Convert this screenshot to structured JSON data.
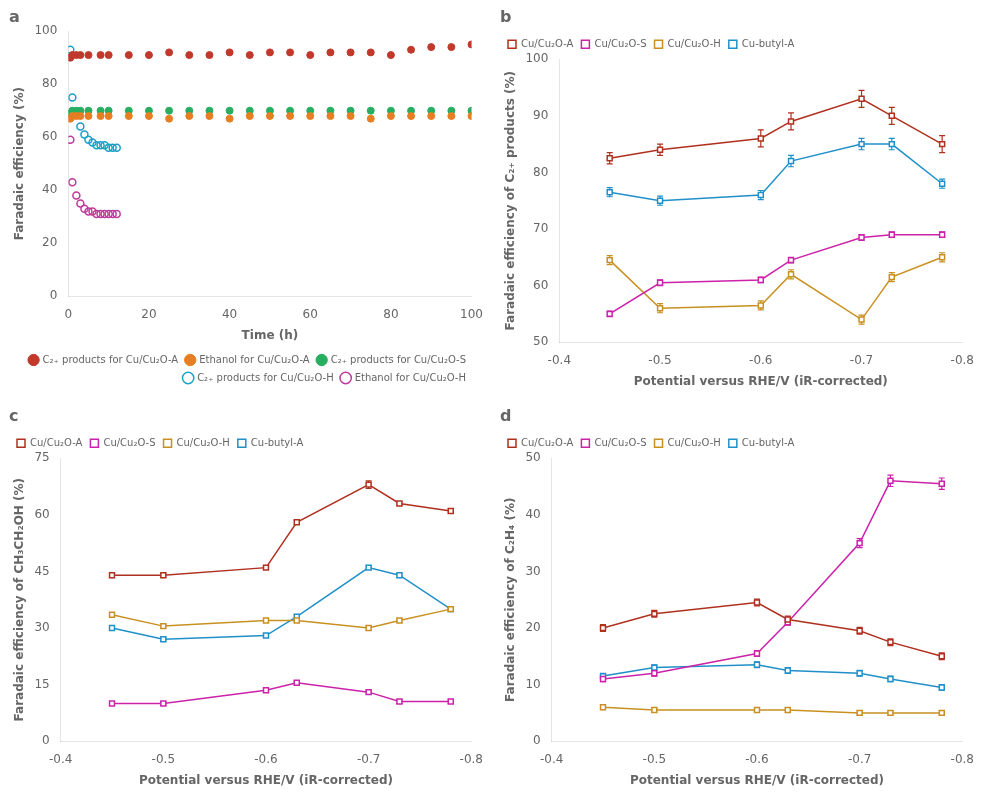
{
  "chart_data": [
    {
      "type": "scatter",
      "title": "a",
      "xlabel": "Time (h)",
      "ylabel": "Faradaic efficiency (%)",
      "xlim": [
        0,
        100
      ],
      "ylim": [
        0,
        100
      ],
      "xticks": [
        0,
        20,
        40,
        60,
        80,
        100
      ],
      "yticks": [
        0,
        20,
        40,
        60,
        80,
        100
      ],
      "grid": false,
      "legend": "lower right",
      "series": [
        {
          "name": "C₂₊ products for Cu/Cu₂O-A",
          "color": "#C0392B",
          "marker": "circle",
          "line_style": "none",
          "x": [
            0.5,
            1,
            2,
            3,
            5,
            8,
            10,
            15,
            20,
            25,
            30,
            35,
            40,
            45,
            50,
            55,
            60,
            65,
            70,
            75,
            80,
            85,
            90,
            95,
            100
          ],
          "values": [
            90,
            91,
            91,
            91,
            91,
            91,
            91,
            91,
            91,
            92,
            91,
            91,
            92,
            91,
            92,
            92,
            91,
            92,
            92,
            92,
            91,
            93,
            94,
            94,
            95
          ]
        },
        {
          "name": "Ethanol for Cu/Cu₂O-A",
          "color": "#E67E22",
          "marker": "circle",
          "line_style": "none",
          "x": [
            0.5,
            1,
            2,
            3,
            5,
            8,
            10,
            15,
            20,
            25,
            30,
            35,
            40,
            45,
            50,
            55,
            60,
            65,
            70,
            75,
            80,
            85,
            90,
            95,
            100
          ],
          "values": [
            67,
            68,
            68,
            68,
            68,
            68,
            68,
            68,
            68,
            67,
            68,
            68,
            67,
            68,
            68,
            68,
            68,
            68,
            68,
            67,
            68,
            68,
            68,
            68,
            68
          ]
        },
        {
          "name": "C₂₊ products for Cu/Cu₂O-S",
          "color": "#27AE60",
          "marker": "circle",
          "line_style": "none",
          "x": [
            0.5,
            1,
            2,
            3,
            5,
            8,
            10,
            15,
            20,
            25,
            30,
            35,
            40,
            45,
            50,
            55,
            60,
            65,
            70,
            75,
            80,
            85,
            90,
            95,
            100
          ],
          "values": [
            69,
            70,
            70,
            70,
            70,
            70,
            70,
            70,
            70,
            70,
            70,
            70,
            70,
            70,
            70,
            70,
            70,
            70,
            70,
            70,
            70,
            70,
            70,
            70,
            70
          ]
        },
        {
          "name": "C₂₊ products for Cu/Cu₂O-H",
          "color": "#17A1C7",
          "marker": "open_circle",
          "line_style": "none",
          "x": [
            0.5,
            1,
            2,
            3,
            4,
            5,
            6,
            7,
            8,
            9,
            10,
            11,
            12
          ],
          "values": [
            93,
            75,
            69,
            64,
            61,
            59,
            58,
            57,
            57,
            57,
            56,
            56,
            56
          ]
        },
        {
          "name": "Ethanol for Cu/Cu₂O-H",
          "color": "#C0399B",
          "marker": "open_circle",
          "line_style": "none",
          "x": [
            0.5,
            1,
            2,
            3,
            4,
            5,
            6,
            7,
            8,
            9,
            10,
            11,
            12
          ],
          "values": [
            59,
            43,
            38,
            35,
            33,
            32,
            32,
            31,
            31,
            31,
            31,
            31,
            31
          ]
        }
      ]
    },
    {
      "type": "line",
      "title": "b",
      "xlabel": "Potential versus RHE/V (iR-corrected)",
      "ylabel": "Faradaic efficiency of C₂₊ products (%)",
      "xlim": [
        -0.4,
        -0.8
      ],
      "ylim": [
        50,
        100
      ],
      "xticks": [
        -0.4,
        -0.5,
        -0.6,
        -0.7,
        -0.8
      ],
      "yticks": [
        50,
        60,
        70,
        80,
        90,
        100
      ],
      "grid": false,
      "legend": "upper left",
      "series": [
        {
          "name": "Cu/Cu₂O-A",
          "color": "#B03020",
          "marker": "open_square",
          "line_style": "solid",
          "x": [
            -0.45,
            -0.5,
            -0.6,
            -0.63,
            -0.7,
            -0.73,
            -0.78
          ],
          "values": [
            82.5,
            84,
            86,
            89,
            93,
            90,
            85
          ],
          "yerr": [
            1.0,
            1.0,
            1.5,
            1.5,
            1.5,
            1.5,
            1.5
          ]
        },
        {
          "name": "Cu/Cu₂O-S",
          "color": "#CC22AA",
          "marker": "open_square",
          "line_style": "solid",
          "x": [
            -0.45,
            -0.5,
            -0.6,
            -0.63,
            -0.7,
            -0.73,
            -0.78
          ],
          "values": [
            55,
            60.5,
            61,
            64.5,
            68.5,
            69,
            69
          ],
          "yerr": [
            0.5,
            0.5,
            0.5,
            0.5,
            0.5,
            0.5,
            0.5
          ]
        },
        {
          "name": "Cu/Cu₂O-H",
          "color": "#C89020",
          "marker": "open_square",
          "line_style": "solid",
          "x": [
            -0.45,
            -0.5,
            -0.6,
            -0.63,
            -0.7,
            -0.73,
            -0.78
          ],
          "values": [
            64.5,
            56,
            56.5,
            62,
            54,
            61.5,
            65
          ],
          "yerr": [
            0.8,
            0.8,
            0.8,
            0.8,
            0.8,
            0.8,
            0.8
          ]
        },
        {
          "name": "Cu-butyl-A",
          "color": "#2090C8",
          "marker": "open_square",
          "line_style": "solid",
          "x": [
            -0.45,
            -0.5,
            -0.6,
            -0.63,
            -0.7,
            -0.73,
            -0.78
          ],
          "values": [
            76.5,
            75,
            76,
            82,
            85,
            85,
            78
          ],
          "yerr": [
            0.8,
            0.8,
            0.8,
            1.0,
            1.0,
            1.0,
            0.8
          ]
        }
      ]
    },
    {
      "type": "line",
      "title": "c",
      "xlabel": "Potential versus RHE/V (iR-corrected)",
      "ylabel": "Faradaic efficiency of CH₃CH₂OH (%)",
      "xlim": [
        -0.4,
        -0.8
      ],
      "ylim": [
        0,
        75
      ],
      "xticks": [
        -0.4,
        -0.5,
        -0.6,
        -0.7,
        -0.8
      ],
      "yticks": [
        0,
        15,
        30,
        45,
        60,
        75
      ],
      "grid": false,
      "legend": "upper left",
      "series": [
        {
          "name": "Cu/Cu₂O-A",
          "color": "#B03020",
          "marker": "open_square",
          "line_style": "solid",
          "x": [
            -0.45,
            -0.5,
            -0.6,
            -0.63,
            -0.7,
            -0.73,
            -0.78
          ],
          "values": [
            44,
            44,
            46,
            58,
            68,
            63,
            61
          ],
          "yerr": [
            0.5,
            0.5,
            0.5,
            0.5,
            1.0,
            0.5,
            0.5
          ]
        },
        {
          "name": "Cu/Cu₂O-S",
          "color": "#CC22AA",
          "marker": "open_square",
          "line_style": "solid",
          "x": [
            -0.45,
            -0.5,
            -0.6,
            -0.63,
            -0.7,
            -0.73,
            -0.78
          ],
          "values": [
            10,
            10,
            13.5,
            15.5,
            13,
            10.5,
            10.5
          ],
          "yerr": [
            0.5,
            0.5,
            0.5,
            0.5,
            0.5,
            0.5,
            0.5
          ]
        },
        {
          "name": "Cu/Cu₂O-H",
          "color": "#C89020",
          "marker": "open_square",
          "line_style": "solid",
          "x": [
            -0.45,
            -0.5,
            -0.6,
            -0.63,
            -0.7,
            -0.73,
            -0.78
          ],
          "values": [
            33.5,
            30.5,
            32,
            32,
            30,
            32,
            35
          ],
          "yerr": [
            0.5,
            0.5,
            0.5,
            0.5,
            0.5,
            0.5,
            0.5
          ]
        },
        {
          "name": "Cu-butyl-A",
          "color": "#2090C8",
          "marker": "open_square",
          "line_style": "solid",
          "x": [
            -0.45,
            -0.5,
            -0.6,
            -0.63,
            -0.7,
            -0.73,
            -0.78
          ],
          "values": [
            30,
            27,
            28,
            33,
            46,
            44,
            35
          ],
          "yerr": [
            0.5,
            0.5,
            0.5,
            0.5,
            0.5,
            0.5,
            0.5
          ]
        }
      ]
    },
    {
      "type": "line",
      "title": "d",
      "xlabel": "Potential versus RHE/V (iR-corrected)",
      "ylabel": "Faradaic efficiency of C₂H₄ (%)",
      "xlim": [
        -0.4,
        -0.8
      ],
      "ylim": [
        0,
        50
      ],
      "xticks": [
        -0.4,
        -0.5,
        -0.6,
        -0.7,
        -0.8
      ],
      "yticks": [
        0,
        10,
        20,
        30,
        40,
        50
      ],
      "grid": false,
      "legend": "upper left",
      "series": [
        {
          "name": "Cu/Cu₂O-A",
          "color": "#B03020",
          "marker": "open_square",
          "line_style": "solid",
          "x": [
            -0.45,
            -0.5,
            -0.6,
            -0.63,
            -0.7,
            -0.73,
            -0.78
          ],
          "values": [
            20.0,
            22.5,
            24.5,
            21.5,
            19.5,
            17.5,
            15
          ],
          "yerr": [
            0.6,
            0.6,
            0.6,
            0.6,
            0.6,
            0.6,
            0.6
          ]
        },
        {
          "name": "Cu/Cu₂O-S",
          "color": "#CC22AA",
          "marker": "open_square",
          "line_style": "solid",
          "x": [
            -0.45,
            -0.5,
            -0.6,
            -0.63,
            -0.7,
            -0.73,
            -0.78
          ],
          "values": [
            11,
            12,
            15.5,
            21,
            35,
            46,
            45.5
          ],
          "yerr": [
            0.5,
            0.5,
            0.5,
            0.5,
            0.8,
            1.0,
            1.0
          ]
        },
        {
          "name": "Cu/Cu₂O-H",
          "color": "#C89020",
          "marker": "open_square",
          "line_style": "solid",
          "x": [
            -0.45,
            -0.5,
            -0.6,
            -0.63,
            -0.7,
            -0.73,
            -0.78
          ],
          "values": [
            6,
            5.5,
            5.5,
            5.5,
            5,
            5,
            5
          ],
          "yerr": [
            0.4,
            0.4,
            0.4,
            0.4,
            0.4,
            0.4,
            0.4
          ]
        },
        {
          "name": "Cu-butyl-A",
          "color": "#2090C8",
          "marker": "open_square",
          "line_style": "solid",
          "x": [
            -0.45,
            -0.5,
            -0.6,
            -0.63,
            -0.7,
            -0.73,
            -0.78
          ],
          "values": [
            11.5,
            13,
            13.5,
            12.5,
            12,
            11,
            9.5
          ],
          "yerr": [
            0.5,
            0.5,
            0.5,
            0.5,
            0.5,
            0.5,
            0.5
          ]
        }
      ]
    }
  ]
}
